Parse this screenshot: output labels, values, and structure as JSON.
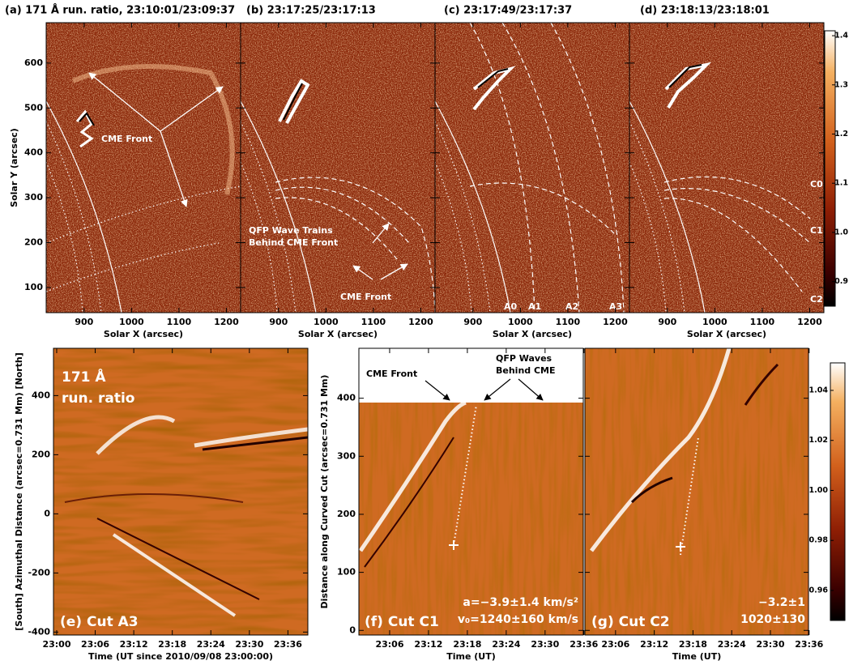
{
  "chart_data": [
    {
      "type": "image",
      "title": "(a) 171 Å run. ratio, 23:10:01/23:09:37",
      "xlabel": "Solar X (arcsec)",
      "ylabel": "Solar Y (arcsec)",
      "xlim": [
        820,
        1230
      ],
      "xticks": [
        900,
        1000,
        1100,
        1200
      ],
      "ylim": [
        44,
        690
      ],
      "yticks": [
        100,
        200,
        300,
        400,
        500,
        600
      ],
      "annotations": [
        "CME Front"
      ]
    },
    {
      "type": "image",
      "title": "(b) 23:17:25/23:17:13",
      "xlabel": "Solar X (arcsec)",
      "xlim": [
        820,
        1230
      ],
      "xticks": [
        900,
        1000,
        1100,
        1200
      ],
      "annotations": [
        "QFP Wave Trains",
        "Behind CME Front",
        "CME Front"
      ]
    },
    {
      "type": "image",
      "title": "(c) 23:17:49/23:17:37",
      "xlabel": "Solar X (arcsec)",
      "xlim": [
        820,
        1230
      ],
      "xticks": [
        900,
        1000,
        1100,
        1200
      ],
      "annotations": [
        "A0",
        "A1",
        "A2",
        "A3"
      ]
    },
    {
      "type": "image",
      "title": "(d) 23:18:13/23:18:01",
      "xlabel": "Solar X (arcsec)",
      "xlim": [
        820,
        1230
      ],
      "xticks": [
        900,
        1000,
        1100,
        1200
      ],
      "annotations": [
        "C0",
        "C1",
        "C2"
      ]
    },
    {
      "type": "colorbar",
      "ylim": [
        0.85,
        1.41
      ],
      "yticks": [
        0.9,
        {
          "value": 1,
          "label": "1.0"
        },
        1.1,
        1.2,
        1.3,
        1.4
      ]
    },
    {
      "type": "image",
      "xlabel": "Time (UT since 2010/09/08 23:00:00)",
      "ylabel": "[South] Azimuthal Distance (arcsec=0.731 Mm) [North]",
      "xlim": [
        -0.5,
        39.1
      ],
      "xticks": [
        {
          "value": 0,
          "label": "23:00"
        },
        {
          "value": 6,
          "label": "23:06"
        },
        {
          "value": 12,
          "label": "23:12"
        },
        {
          "value": 18,
          "label": "23:18"
        },
        {
          "value": 24,
          "label": "23:24"
        },
        {
          "value": 30,
          "label": "23:30"
        },
        {
          "value": 36,
          "label": "23:36"
        }
      ],
      "ylim": [
        -410,
        560
      ],
      "yticks": [
        -400,
        -200,
        0,
        200,
        400
      ],
      "annotations": [
        "171 Å",
        "run. ratio",
        "(e) Cut A3"
      ]
    },
    {
      "type": "image",
      "xlabel": "Time (UT)",
      "ylabel": "Distance along Curved Cut (arcsec=0.731 Mm)",
      "xlim": [
        1.25,
        35.9
      ],
      "xticks": [
        {
          "value": 6,
          "label": "23:06"
        },
        {
          "value": 12,
          "label": "23:12"
        },
        {
          "value": 18,
          "label": "23:18"
        },
        {
          "value": 24,
          "label": "23:24"
        },
        {
          "value": 30,
          "label": "23:30"
        },
        {
          "value": 36,
          "label": "23:36"
        }
      ],
      "ylim": [
        -8,
        486
      ],
      "yticks": [
        0,
        100,
        200,
        300,
        400
      ],
      "annotations": [
        "CME Front",
        "QFP Waves",
        "Behind CME",
        "(f) Cut C1",
        "a=−3.9±1.4 km/s²",
        "v₀=1240±160 km/s"
      ]
    },
    {
      "type": "image",
      "xlabel": "Time (UT)",
      "xlim": [
        1.25,
        35.9
      ],
      "xticks": [
        {
          "value": 6,
          "label": "23:06"
        },
        {
          "value": 12,
          "label": "23:12"
        },
        {
          "value": 18,
          "label": "23:18"
        },
        {
          "value": 24,
          "label": "23:24"
        },
        {
          "value": 30,
          "label": "23:30"
        },
        {
          "value": 36,
          "label": "23:36"
        }
      ],
      "annotations": [
        "(g) Cut C2",
        "−3.2±1",
        "1020±130"
      ]
    },
    {
      "type": "colorbar",
      "ylim": [
        0.948,
        1.051
      ],
      "yticks": [
        0.96,
        0.98,
        {
          "value": 1,
          "label": "1.00"
        },
        1.02,
        1.04
      ]
    }
  ]
}
